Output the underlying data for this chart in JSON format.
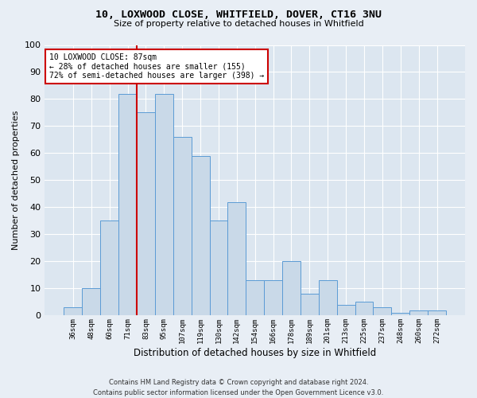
{
  "title1": "10, LOXWOOD CLOSE, WHITFIELD, DOVER, CT16 3NU",
  "title2": "Size of property relative to detached houses in Whitfield",
  "xlabel": "Distribution of detached houses by size in Whitfield",
  "ylabel": "Number of detached properties",
  "footnote1": "Contains HM Land Registry data © Crown copyright and database right 2024.",
  "footnote2": "Contains public sector information licensed under the Open Government Licence v3.0.",
  "categories": [
    "36sqm",
    "48sqm",
    "60sqm",
    "71sqm",
    "83sqm",
    "95sqm",
    "107sqm",
    "119sqm",
    "130sqm",
    "142sqm",
    "154sqm",
    "166sqm",
    "178sqm",
    "189sqm",
    "201sqm",
    "213sqm",
    "225sqm",
    "237sqm",
    "248sqm",
    "260sqm",
    "272sqm"
  ],
  "values": [
    3,
    10,
    35,
    82,
    75,
    82,
    66,
    59,
    35,
    42,
    13,
    13,
    20,
    8,
    13,
    4,
    5,
    3,
    1,
    2,
    2
  ],
  "bar_color": "#c9d9e8",
  "bar_edge_color": "#5b9bd5",
  "vline_x_index": 3.5,
  "annotation_text1": "10 LOXWOOD CLOSE: 87sqm",
  "annotation_text2": "← 28% of detached houses are smaller (155)",
  "annotation_text3": "72% of semi-detached houses are larger (398) →",
  "vline_color": "#cc0000",
  "annotation_box_color": "#ffffff",
  "annotation_box_edge": "#cc0000",
  "ylim": [
    0,
    100
  ],
  "yticks": [
    0,
    10,
    20,
    30,
    40,
    50,
    60,
    70,
    80,
    90,
    100
  ],
  "background_color": "#e8eef5",
  "plot_bg_color": "#dce6f0"
}
